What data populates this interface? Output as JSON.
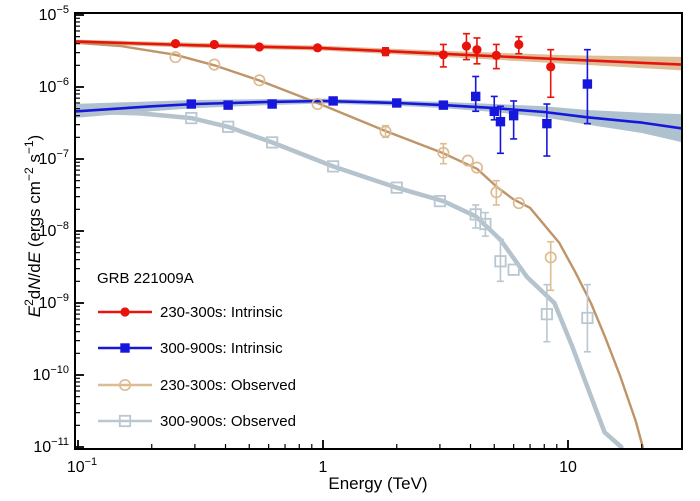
{
  "chart_data": {
    "type": "scatter+line",
    "title": "GRB 221009A",
    "xlabel": "Energy (TeV)",
    "ylabel_plain": "E^2 dN/dE (ergs cm^-2 s^-1)",
    "ylabel_rich": [
      {
        "t": "E",
        "s": "i"
      },
      {
        "t": "2",
        "s": "u"
      },
      {
        "t": "d",
        "s": "n"
      },
      {
        "t": "N",
        "s": "i"
      },
      {
        "t": "/d",
        "s": "n"
      },
      {
        "t": "E",
        "s": "i"
      },
      {
        "t": " (ergs cm",
        "s": "n"
      },
      {
        "t": "−2",
        "s": "u"
      },
      {
        "t": " s",
        "s": "n"
      },
      {
        "t": "−1",
        "s": "u"
      },
      {
        "t": ")",
        "s": "n"
      }
    ],
    "xscale": "log",
    "yscale": "log",
    "xlim": [
      0.095,
      29.3
    ],
    "ylim": [
      1e-11,
      1e-05
    ],
    "grid": false,
    "x_major_ticks": [
      {
        "value": 0.1,
        "label": "10^-1"
      },
      {
        "value": 1,
        "label": "1"
      },
      {
        "value": 10,
        "label": "10"
      }
    ],
    "y_major_ticks": [
      {
        "value": 1e-05,
        "label": "10^-5"
      },
      {
        "value": 1e-06,
        "label": "10^-6"
      },
      {
        "value": 1e-07,
        "label": "10^-7"
      },
      {
        "value": 1e-08,
        "label": "10^-8"
      },
      {
        "value": 1e-09,
        "label": "10^-9"
      },
      {
        "value": 1e-10,
        "label": "10^-10"
      },
      {
        "value": 1e-11,
        "label": "10^-11"
      }
    ],
    "series": [
      {
        "name": "230-300s: Intrinsic",
        "line_color": "#e8130b",
        "marker_color": "#e8130b",
        "marker": "circle-filled",
        "line_width": 2.6,
        "band_color": "#d9b78c",
        "line": [
          [
            0.095,
            4.3e-06
          ],
          [
            0.3,
            3.8e-06
          ],
          [
            1,
            3.46e-06
          ],
          [
            3,
            2.9e-06
          ],
          [
            10,
            2.4e-06
          ],
          [
            29.3,
            2.05e-06
          ]
        ],
        "band": [
          [
            0.095,
            3.99e-06,
            4.55e-06
          ],
          [
            0.3,
            3.51e-06,
            4.11e-06
          ],
          [
            1,
            3.2e-06,
            3.74e-06
          ],
          [
            3,
            2.64e-06,
            3.19e-06
          ],
          [
            10,
            2.09e-06,
            2.76e-06
          ],
          [
            29.3,
            1.7e-06,
            2.62e-06
          ]
        ],
        "points": [
          [
            0.25,
            4e-06,
            null,
            null
          ],
          [
            0.36,
            3.9e-06,
            null,
            null
          ],
          [
            0.55,
            3.6e-06,
            null,
            null
          ],
          [
            0.95,
            3.5e-06,
            null,
            null
          ],
          [
            1.8,
            3.1e-06,
            2.74e-06,
            3.5e-06
          ],
          [
            3.1,
            2.8e-06,
            1.9e-06,
            3.9e-06
          ],
          [
            3.85,
            3.7e-06,
            2.4e-06,
            5.5e-06
          ],
          [
            4.25,
            3.3e-06,
            2.1e-06,
            4.8e-06
          ],
          [
            5.1,
            2.75e-06,
            1.8e-06,
            3.9e-06
          ],
          [
            6.3,
            3.9e-06,
            2.9e-06,
            5e-06
          ],
          [
            8.5,
            1.9e-06,
            7.2e-07,
            3.3e-06
          ]
        ]
      },
      {
        "name": "300-900s: Intrinsic",
        "line_color": "#1616dd",
        "marker_color": "#1616dd",
        "marker": "square-filled",
        "line_width": 2.6,
        "band_color": "#a5bac9",
        "line": [
          [
            0.095,
            4.55e-07
          ],
          [
            0.2,
            5.4e-07
          ],
          [
            0.3,
            5.8e-07
          ],
          [
            0.6,
            6.2e-07
          ],
          [
            1,
            6.4e-07
          ],
          [
            2,
            6e-07
          ],
          [
            3.1,
            5.6e-07
          ],
          [
            5,
            5.1e-07
          ],
          [
            8,
            4.5e-07
          ],
          [
            12,
            3.8e-07
          ],
          [
            20,
            3.2e-07
          ],
          [
            29.3,
            2.65e-07
          ]
        ],
        "band": [
          [
            0.095,
            3.7e-07,
            5.8e-07
          ],
          [
            0.2,
            4.6e-07,
            6.3e-07
          ],
          [
            0.3,
            5.1e-07,
            6.6e-07
          ],
          [
            0.6,
            5.6e-07,
            6.8e-07
          ],
          [
            1,
            5.9e-07,
            6.9e-07
          ],
          [
            2,
            5.5e-07,
            6.5e-07
          ],
          [
            3.1,
            5.1e-07,
            6.2e-07
          ],
          [
            5,
            4.5e-07,
            5.8e-07
          ],
          [
            8,
            3.8e-07,
            5.4e-07
          ],
          [
            12,
            3e-07,
            4.8e-07
          ],
          [
            20,
            2.3e-07,
            4.4e-07
          ],
          [
            29.3,
            1.7e-07,
            4.2e-07
          ]
        ],
        "points": [
          [
            0.29,
            5.8e-07,
            null,
            null
          ],
          [
            0.41,
            5.6e-07,
            null,
            null
          ],
          [
            0.62,
            5.8e-07,
            null,
            null
          ],
          [
            1.1,
            6.4e-07,
            null,
            null
          ],
          [
            2.0,
            6e-07,
            null,
            null
          ],
          [
            3.1,
            5.6e-07,
            null,
            null
          ],
          [
            4.2,
            7.4e-07,
            4.6e-07,
            1.4e-06
          ],
          [
            5.0,
            4.6e-07,
            3.5e-07,
            7.4e-07
          ],
          [
            5.3,
            3.3e-07,
            1.2e-07,
            5.4e-07
          ],
          [
            6.0,
            4e-07,
            1.9e-07,
            6.4e-07
          ],
          [
            8.2,
            3.1e-07,
            1.1e-07,
            5.8e-07
          ],
          [
            12,
            1.1e-06,
            3.1e-07,
            3.3e-06
          ]
        ]
      },
      {
        "name": "230-300s: Observed",
        "line_color": "#bf9468",
        "marker_color": "#ddbc92",
        "marker": "circle-open",
        "line_width": 2.4,
        "band_color": null,
        "line": [
          [
            0.095,
            4.15e-06
          ],
          [
            0.15,
            3.7e-06
          ],
          [
            0.25,
            2.8e-06
          ],
          [
            0.36,
            2e-06
          ],
          [
            0.55,
            1.23e-06
          ],
          [
            0.95,
            6e-07
          ],
          [
            1.8,
            2.45e-07
          ],
          [
            3.1,
            1.2e-07
          ],
          [
            4.25,
            7.3e-08
          ],
          [
            5.1,
            4.15e-08
          ],
          [
            6.0,
            2.75e-08
          ],
          [
            7.0,
            2.1e-08
          ],
          [
            9.2,
            6.9e-09
          ],
          [
            10.7,
            2.7e-09
          ],
          [
            12.4,
            1e-09
          ],
          [
            14.1,
            3.5e-10
          ],
          [
            16.3,
            9.8e-11
          ],
          [
            18.9,
            2.3e-11
          ],
          [
            20.2,
            1e-11
          ]
        ],
        "points": [
          [
            0.25,
            2.6e-06,
            null,
            null
          ],
          [
            0.36,
            2.05e-06,
            null,
            null
          ],
          [
            0.55,
            1.24e-06,
            null,
            null
          ],
          [
            0.95,
            5.8e-07,
            null,
            null
          ],
          [
            1.8,
            2.4e-07,
            2e-07,
            2.9e-07
          ],
          [
            3.1,
            1.22e-07,
            8.6e-08,
            1.63e-07
          ],
          [
            3.9,
            9.5e-08,
            null,
            null
          ],
          [
            4.25,
            7.6e-08,
            null,
            null
          ],
          [
            5.1,
            3.45e-08,
            2.3e-08,
            5e-08
          ],
          [
            6.3,
            2.44e-08,
            null,
            null
          ],
          [
            8.5,
            4.3e-09,
            1.5e-09,
            7.1e-09
          ]
        ]
      },
      {
        "name": "300-900s: Observed",
        "line_color": "#b5c3cd",
        "marker_color": "#b9c7d0",
        "marker": "square-open",
        "line_width": 4.5,
        "band_color": null,
        "line": [
          [
            0.095,
            4.6e-07
          ],
          [
            0.18,
            4.3e-07
          ],
          [
            0.29,
            3.7e-07
          ],
          [
            0.41,
            2.8e-07
          ],
          [
            0.62,
            1.7e-07
          ],
          [
            1.1,
            7.9e-08
          ],
          [
            2.0,
            4e-08
          ],
          [
            3.1,
            2.6e-08
          ],
          [
            4.2,
            1.6e-08
          ],
          [
            5.3,
            7.6e-09
          ],
          [
            6.8,
            2.3e-09
          ],
          [
            8.8,
            1e-09
          ],
          [
            10.4,
            2.5e-10
          ],
          [
            12.1,
            6.3e-11
          ],
          [
            14.1,
            1.6e-11
          ],
          [
            16.5,
            1e-11
          ]
        ],
        "points": [
          [
            0.29,
            3.7e-07,
            null,
            null
          ],
          [
            0.41,
            2.8e-07,
            null,
            null
          ],
          [
            0.62,
            1.7e-07,
            null,
            null
          ],
          [
            1.1,
            7.9e-08,
            null,
            null
          ],
          [
            2.0,
            4e-08,
            null,
            null
          ],
          [
            3.0,
            2.6e-08,
            null,
            null
          ],
          [
            4.2,
            1.7e-08,
            1.1e-08,
            2.3e-08
          ],
          [
            4.6,
            1.25e-08,
            8.5e-09,
            1.8e-08
          ],
          [
            5.3,
            3.8e-09,
            2e-09,
            7.6e-09
          ],
          [
            6.0,
            2.9e-09,
            null,
            null
          ],
          [
            8.2,
            7e-10,
            2.9e-10,
            1.8e-09
          ],
          [
            12,
            6.2e-10,
            2.1e-10,
            1.8e-09
          ]
        ]
      }
    ],
    "legend": {
      "title": "GRB 221009A",
      "position": "lower-left",
      "items": [
        {
          "label": "230-300s: Intrinsic",
          "series": 0
        },
        {
          "label": "300-900s: Intrinsic",
          "series": 1
        },
        {
          "label": "230-300s: Observed",
          "series": 2
        },
        {
          "label": "300-900s: Observed",
          "series": 3
        }
      ]
    }
  }
}
